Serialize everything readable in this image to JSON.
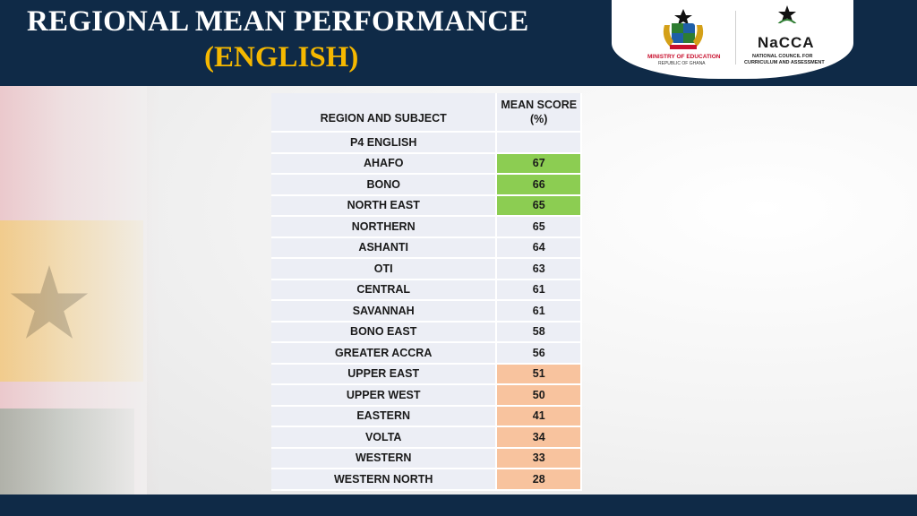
{
  "header": {
    "title_line1": "REGIONAL MEAN PERFORMANCE",
    "title_line2": "(ENGLISH)"
  },
  "logos": {
    "moe_line1": "MINISTRY OF EDUCATION",
    "moe_line2": "REPUBLIC OF GHANA",
    "nacca_name": "NaCCA",
    "nacca_line1": "NATIONAL COUNCIL FOR",
    "nacca_line2": "CURRICULUM AND ASSESSMENT"
  },
  "table": {
    "col1_header": "REGION AND SUBJECT",
    "col2_header_line1": "MEAN SCORE",
    "col2_header_line2": "(%)",
    "subject": "P4 ENGLISH",
    "rows": [
      {
        "region": "AHAFO",
        "score": "67",
        "band": "green"
      },
      {
        "region": "BONO",
        "score": "66",
        "band": "green"
      },
      {
        "region": "NORTH EAST",
        "score": "65",
        "band": "green"
      },
      {
        "region": "NORTHERN",
        "score": "65",
        "band": "none"
      },
      {
        "region": "ASHANTI",
        "score": "64",
        "band": "none"
      },
      {
        "region": "OTI",
        "score": "63",
        "band": "none"
      },
      {
        "region": "CENTRAL",
        "score": "61",
        "band": "none"
      },
      {
        "region": "SAVANNAH",
        "score": "61",
        "band": "none"
      },
      {
        "region": "BONO EAST",
        "score": "58",
        "band": "none"
      },
      {
        "region": "GREATER ACCRA",
        "score": "56",
        "band": "none"
      },
      {
        "region": "UPPER EAST",
        "score": "51",
        "band": "orange"
      },
      {
        "region": "UPPER WEST",
        "score": "50",
        "band": "orange"
      },
      {
        "region": "EASTERN",
        "score": "41",
        "band": "orange"
      },
      {
        "region": "VOLTA",
        "score": "34",
        "band": "orange"
      },
      {
        "region": "WESTERN",
        "score": "33",
        "band": "orange"
      },
      {
        "region": "WESTERN NORTH",
        "score": "28",
        "band": "orange"
      }
    ]
  },
  "colors": {
    "header_bg": "#0f2a47",
    "title_accent": "#f5b800",
    "high_band": "#8ccd52",
    "low_band": "#f8c39e",
    "cell_bg": "#eceef5"
  }
}
